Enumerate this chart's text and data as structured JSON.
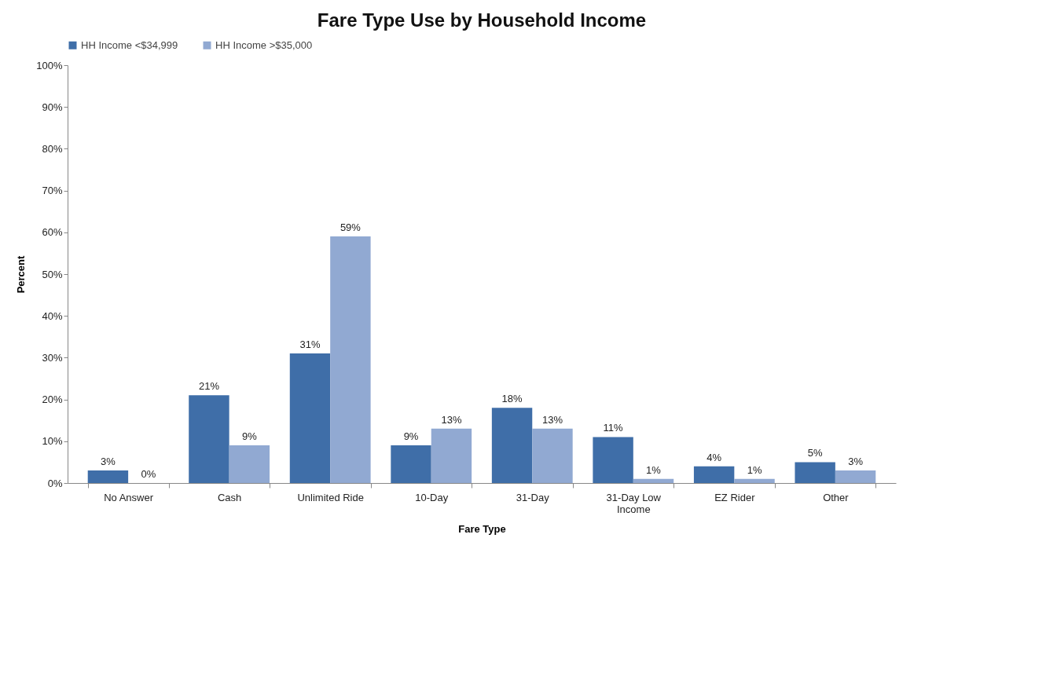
{
  "chart_data": {
    "type": "bar",
    "title": "Fare Type Use by Household Income",
    "xlabel": "Fare Type",
    "ylabel": "Percent",
    "categories": [
      "No Answer",
      "Cash",
      "Unlimited Ride",
      "10-Day",
      "31-Day",
      "31-Day Low Income",
      "EZ Rider",
      "Other"
    ],
    "series": [
      {
        "name": "HH Income <$34,999",
        "color": "#3f6ea8",
        "values": [
          3,
          21,
          31,
          9,
          18,
          11,
          4,
          5
        ]
      },
      {
        "name": "HH Income >$35,000",
        "color": "#91a9d2",
        "values": [
          0,
          9,
          59,
          13,
          13,
          1,
          1,
          3
        ]
      }
    ],
    "ylim": [
      0,
      100
    ],
    "yticks": [
      {
        "value": 0,
        "label": "0%"
      },
      {
        "value": 10,
        "label": "10%"
      },
      {
        "value": 20,
        "label": "20%"
      },
      {
        "value": 30,
        "label": "30%"
      },
      {
        "value": 40,
        "label": "40%"
      },
      {
        "value": 50,
        "label": "50%"
      },
      {
        "value": 60,
        "label": "60%"
      },
      {
        "value": 70,
        "label": "70%"
      },
      {
        "value": 80,
        "label": "80%"
      },
      {
        "value": 90,
        "label": "90%"
      },
      {
        "value": 100,
        "label": "100%"
      }
    ],
    "value_labels": [
      [
        "3%",
        "21%",
        "31%",
        "9%",
        "18%",
        "11%",
        "4%",
        "5%"
      ],
      [
        "0%",
        "9%",
        "59%",
        "13%",
        "13%",
        "1%",
        "1%",
        "3%"
      ]
    ],
    "grid": false,
    "legend": "top"
  }
}
